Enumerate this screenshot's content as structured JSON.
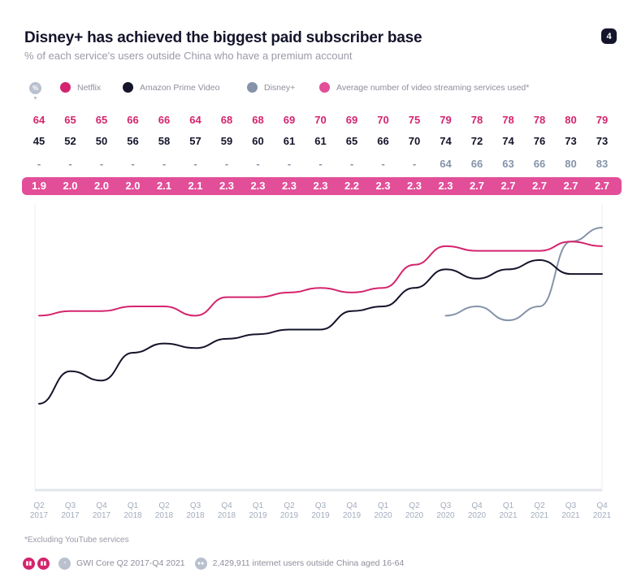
{
  "header": {
    "title": "Disney+ has achieved the biggest paid subscriber base",
    "subtitle": "% of each service's users outside China who have a premium account",
    "page_number": "4"
  },
  "legend": {
    "unit_badge": "%",
    "items": [
      {
        "label": "Netflix",
        "color": "#d4246e"
      },
      {
        "label": "Amazon Prime Video",
        "color": "#14142b"
      },
      {
        "label": "Disney+",
        "color": "#8593a9"
      },
      {
        "label": "Average number of video streaming services used*",
        "color": "#e24e98"
      }
    ]
  },
  "table": {
    "netflix": [
      "64",
      "65",
      "65",
      "66",
      "66",
      "64",
      "68",
      "68",
      "69",
      "70",
      "69",
      "70",
      "75",
      "79",
      "78",
      "78",
      "78",
      "80",
      "79"
    ],
    "amazon": [
      "45",
      "52",
      "50",
      "56",
      "58",
      "57",
      "59",
      "60",
      "61",
      "61",
      "65",
      "66",
      "70",
      "74",
      "72",
      "74",
      "76",
      "73",
      "73"
    ],
    "disney": [
      "-",
      "-",
      "-",
      "-",
      "-",
      "-",
      "-",
      "-",
      "-",
      "-",
      "-",
      "-",
      "-",
      "64",
      "66",
      "63",
      "66",
      "80",
      "83"
    ],
    "average": [
      "1.9",
      "2.0",
      "2.0",
      "2.0",
      "2.1",
      "2.1",
      "2.3",
      "2.3",
      "2.3",
      "2.3",
      "2.2",
      "2.3",
      "2.3",
      "2.3",
      "2.7",
      "2.7",
      "2.7",
      "2.7",
      "2.7"
    ]
  },
  "chart_data": {
    "type": "line",
    "title": "Disney+ has achieved the biggest paid subscriber base",
    "subtitle": "% of each service's users outside China who have a premium account",
    "x": [
      "Q2 2017",
      "Q3 2017",
      "Q4 2017",
      "Q1 2018",
      "Q2 2018",
      "Q3 2018",
      "Q4 2018",
      "Q1 2019",
      "Q2 2019",
      "Q3 2019",
      "Q4 2019",
      "Q1 2020",
      "Q2 2020",
      "Q3 2020",
      "Q4 2020",
      "Q1 2021",
      "Q2 2021",
      "Q3 2021",
      "Q4 2021"
    ],
    "x_ticks": [
      {
        "q": "Q2",
        "y": "2017"
      },
      {
        "q": "Q3",
        "y": "2017"
      },
      {
        "q": "Q4",
        "y": "2017"
      },
      {
        "q": "Q1",
        "y": "2018"
      },
      {
        "q": "Q2",
        "y": "2018"
      },
      {
        "q": "Q3",
        "y": "2018"
      },
      {
        "q": "Q4",
        "y": "2018"
      },
      {
        "q": "Q1",
        "y": "2019"
      },
      {
        "q": "Q2",
        "y": "2019"
      },
      {
        "q": "Q3",
        "y": "2019"
      },
      {
        "q": "Q4",
        "y": "2019"
      },
      {
        "q": "Q1",
        "y": "2020"
      },
      {
        "q": "Q2",
        "y": "2020"
      },
      {
        "q": "Q3",
        "y": "2020"
      },
      {
        "q": "Q4",
        "y": "2020"
      },
      {
        "q": "Q1",
        "y": "2021"
      },
      {
        "q": "Q2",
        "y": "2021"
      },
      {
        "q": "Q3",
        "y": "2021"
      },
      {
        "q": "Q4",
        "y": "2021"
      }
    ],
    "series": [
      {
        "name": "Netflix",
        "color": "#d4246e",
        "values": [
          64,
          65,
          65,
          66,
          66,
          64,
          68,
          68,
          69,
          70,
          69,
          70,
          75,
          79,
          78,
          78,
          78,
          80,
          79
        ]
      },
      {
        "name": "Amazon Prime Video",
        "color": "#14142b",
        "values": [
          45,
          52,
          50,
          56,
          58,
          57,
          59,
          60,
          61,
          61,
          65,
          66,
          70,
          74,
          72,
          74,
          76,
          73,
          73
        ]
      },
      {
        "name": "Disney+",
        "color": "#8593a9",
        "values": [
          null,
          null,
          null,
          null,
          null,
          null,
          null,
          null,
          null,
          null,
          null,
          null,
          null,
          64,
          66,
          63,
          66,
          80,
          83
        ]
      }
    ],
    "ylim": [
      0,
      100
    ],
    "grid": false,
    "legend_position": "top-left"
  },
  "footer": {
    "footnote": "*Excluding YouTube services",
    "source": "GWI Core Q2 2017-Q4 2021",
    "sample": "2,429,911 internet users outside China aged 16-64"
  }
}
